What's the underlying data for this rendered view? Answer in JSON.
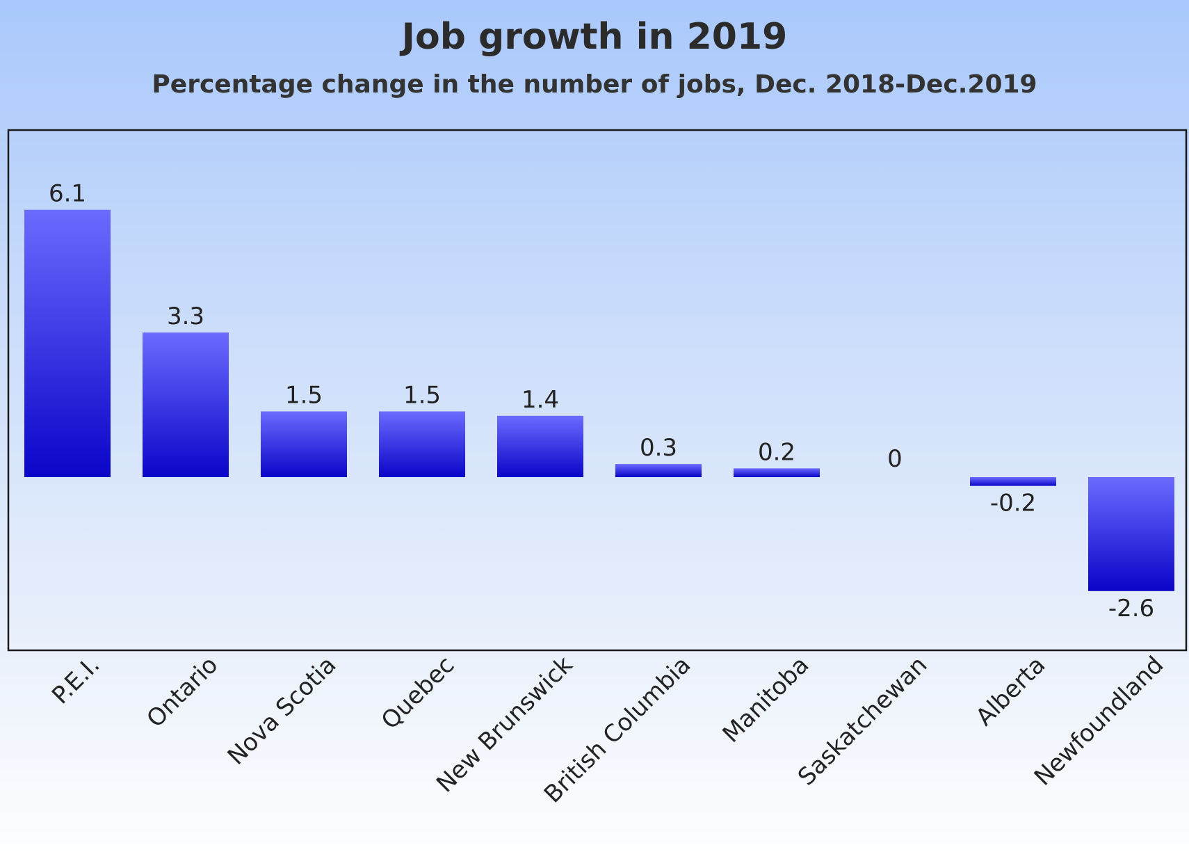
{
  "chart_data": {
    "type": "bar",
    "title": "Job growth in 2019",
    "subtitle": "Percentage change in the number of jobs, Dec. 2018-Dec.2019",
    "categories": [
      "P.E.I.",
      "Ontario",
      "Nova Scotia",
      "Quebec",
      "New Brunswick",
      "British Columbia",
      "Manitoba",
      "Saskatchewan",
      "Alberta",
      "Newfoundland"
    ],
    "values": [
      6.1,
      3.3,
      1.5,
      1.5,
      1.4,
      0.3,
      0.2,
      0,
      -0.2,
      -2.6
    ],
    "value_labels": [
      "6.1",
      "3.3",
      "1.5",
      "1.5",
      "1.4",
      "0.3",
      "0.2",
      "0",
      "-0.2",
      "-2.6"
    ],
    "xlabel": "",
    "ylabel": "",
    "ylim": [
      -4.0,
      7.8
    ],
    "grid": false,
    "legend": "none",
    "colors": {
      "bar_top": "#6b6bff",
      "bar_bottom": "#0a05c8",
      "frame": "#1a1a1a"
    }
  }
}
